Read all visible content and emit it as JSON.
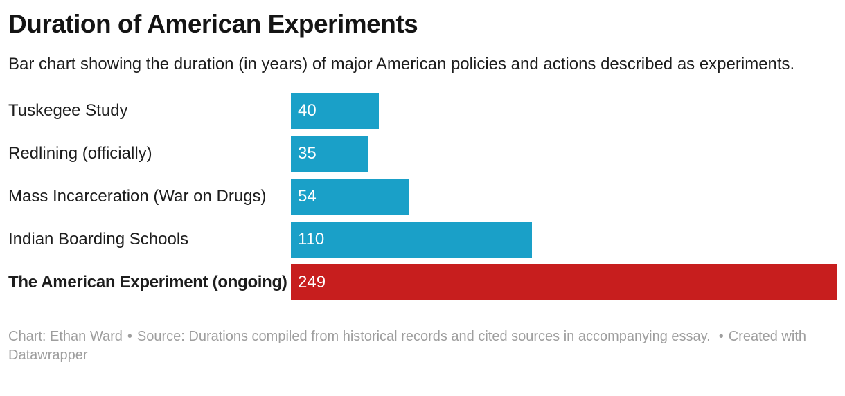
{
  "header": {
    "title": "Duration of American Experiments",
    "description": "Bar chart showing the duration (in years) of major American policies and actions described as experiments."
  },
  "chart_data": {
    "type": "bar",
    "orientation": "horizontal",
    "title": "Duration of American Experiments",
    "xlabel": "",
    "ylabel": "",
    "xlim": [
      0,
      249
    ],
    "grid": false,
    "legend": false,
    "value_label_position": "inside-left",
    "categories": [
      "Tuskegee Study",
      "Redlining (officially)",
      "Mass Incarceration (War on Drugs)",
      "Indian Boarding Schools",
      "The American Experiment (ongoing)"
    ],
    "values": [
      40,
      35,
      54,
      110,
      249
    ],
    "bar_colors": [
      "#1aa0c8",
      "#1aa0c8",
      "#1aa0c8",
      "#1aa0c8",
      "#c71e1e"
    ],
    "value_label_color": "#ffffff",
    "emphasized_category": "The American Experiment (ongoing)"
  },
  "footer": {
    "chart_credit": "Chart: Ethan Ward",
    "separator": "•",
    "source_text": "Source: Durations compiled from historical records and cited sources in accompanying essay.",
    "created_with": "Created with Datawrapper"
  }
}
